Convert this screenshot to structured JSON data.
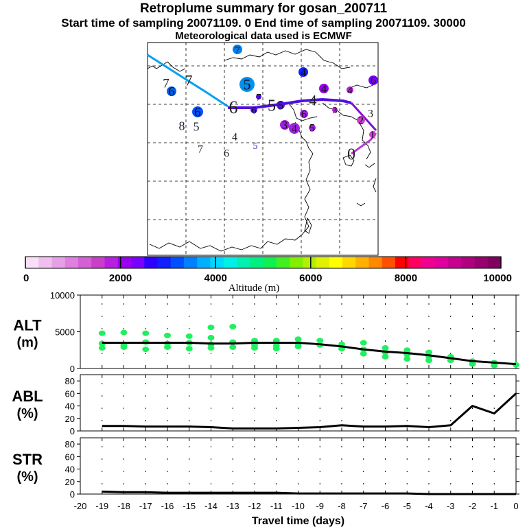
{
  "header": {
    "title": "Retroplume summary for gosan_200711",
    "sampling_line": "Start time of sampling 20071109.    0     End time of sampling 20071109. 30000",
    "met_line": "Meteorological data used is ECMWF"
  },
  "colorbar": {
    "ticks": [
      "0",
      "2000",
      "4000",
      "6000",
      "8000",
      "10000"
    ],
    "label": "Altitude  (m)",
    "colors": [
      "#f7e0f7",
      "#efc0ef",
      "#e79fe7",
      "#df7fdf",
      "#d55fd5",
      "#c93fc9",
      "#b81fe0",
      "#9a00f0",
      "#7a00ff",
      "#3000ff",
      "#1020ff",
      "#0050ff",
      "#0080ff",
      "#00b0ff",
      "#00d8ff",
      "#00f0e8",
      "#00f0b0",
      "#00f080",
      "#10f050",
      "#40f020",
      "#80f000",
      "#b0f000",
      "#e0f000",
      "#ffff00",
      "#ffd800",
      "#ffb000",
      "#ff8800",
      "#ff5000",
      "#ff0000",
      "#ff0060",
      "#f00090",
      "#e000a0",
      "#c80090",
      "#b00080",
      "#980070",
      "#800060"
    ]
  },
  "map": {
    "trajectory_colors": {
      "upper": "#00a0f0",
      "middle": "#5010e0",
      "lower": "#b040d0"
    },
    "labels": [
      {
        "text": "7",
        "color": "#0080f0",
        "dot": true
      },
      {
        "text": "4",
        "color": "#1020ff",
        "dot": true
      },
      {
        "text": "5",
        "color": "#0090f0",
        "dot": true
      },
      {
        "text": "6",
        "color": "#0060f0",
        "dot": true
      },
      {
        "text": "7",
        "color": "#202020",
        "dot": false
      },
      {
        "text": "6",
        "color": "#0050ff",
        "dot": true
      },
      {
        "text": "7",
        "color": "#202020",
        "dot": false
      },
      {
        "text": "6",
        "color": "#1020ff",
        "dot": true
      },
      {
        "text": "8",
        "color": "#202040",
        "dot": false
      },
      {
        "text": "5",
        "color": "#202040",
        "dot": false
      },
      {
        "text": "6",
        "color": "#202020",
        "dot": false
      },
      {
        "text": "7",
        "color": "#5010e0",
        "dot": true
      },
      {
        "text": "6",
        "color": "#5010e0",
        "dot": true
      },
      {
        "text": "5",
        "color": "#202020",
        "dot": false
      },
      {
        "text": "5",
        "color": "#5010e0",
        "dot": true
      },
      {
        "text": "4",
        "color": "#202020",
        "dot": false
      },
      {
        "text": "4",
        "color": "#9a00f0",
        "dot": true
      },
      {
        "text": "4",
        "color": "#b81fe0",
        "dot": true
      },
      {
        "text": "3",
        "color": "#b81fe0",
        "dot": true
      },
      {
        "text": "3",
        "color": "#202020",
        "dot": false
      },
      {
        "text": "2",
        "color": "#c93fc9",
        "dot": true
      },
      {
        "text": "1",
        "color": "#c93fc9",
        "dot": true
      },
      {
        "text": "3",
        "color": "#a020e0",
        "dot": true
      },
      {
        "text": "4",
        "color": "#a020e0",
        "dot": true
      },
      {
        "text": "5",
        "color": "#a020e0",
        "dot": true
      },
      {
        "text": "6",
        "color": "#a020e0",
        "dot": true
      },
      {
        "text": "7",
        "color": "#202020",
        "dot": false
      },
      {
        "text": "6",
        "color": "#202020",
        "dot": false
      },
      {
        "text": "4",
        "color": "#202020",
        "dot": false
      },
      {
        "text": "5",
        "color": "#5010e0",
        "dot": false
      },
      {
        "text": "0",
        "color": "#202020",
        "dot": false
      },
      {
        "text": "0",
        "color": "#202020",
        "dot": false
      },
      {
        "text": "1",
        "color": "#c93fc9",
        "dot": false
      },
      {
        "text": "6",
        "color": "#7a00ff",
        "dot": true
      }
    ]
  },
  "chart_data": [
    {
      "type": "line",
      "panel": "ALT",
      "ylabel_line1": "ALT",
      "ylabel_line2": "(m)",
      "ylim": [
        0,
        10000
      ],
      "yticks": [
        "0",
        "5000",
        "10000"
      ],
      "x": [
        0,
        -1,
        -2,
        -3,
        -4,
        -5,
        -6,
        -7,
        -8,
        -9,
        -10,
        -11,
        -12,
        -13,
        -14,
        -15,
        -16,
        -17,
        -18,
        -19
      ],
      "series": [
        {
          "name": "mean altitude",
          "values": [
            600,
            800,
            1000,
            1400,
            1800,
            2100,
            2300,
            2600,
            3000,
            3300,
            3500,
            3500,
            3500,
            3400,
            3400,
            3500,
            3500,
            3500,
            3500,
            3500
          ]
        }
      ],
      "scatter": {
        "name": "particle altitudes",
        "color": "#20f060",
        "points": [
          [
            -19,
            4800
          ],
          [
            -19,
            3400
          ],
          [
            -19,
            2800
          ],
          [
            -18,
            4900
          ],
          [
            -18,
            3200
          ],
          [
            -18,
            2900
          ],
          [
            -17,
            4800
          ],
          [
            -17,
            3600
          ],
          [
            -17,
            2600
          ],
          [
            -16,
            4500
          ],
          [
            -16,
            3400
          ],
          [
            -16,
            2900
          ],
          [
            -15,
            4400
          ],
          [
            -15,
            3500
          ],
          [
            -15,
            2700
          ],
          [
            -14,
            5600
          ],
          [
            -14,
            4200
          ],
          [
            -14,
            3300
          ],
          [
            -14,
            2800
          ],
          [
            -13,
            5700
          ],
          [
            -13,
            3600
          ],
          [
            -13,
            2900
          ],
          [
            -12,
            3800
          ],
          [
            -12,
            3200
          ],
          [
            -12,
            2800
          ],
          [
            -11,
            3800
          ],
          [
            -11,
            3100
          ],
          [
            -11,
            2700
          ],
          [
            -10,
            4000
          ],
          [
            -10,
            3400
          ],
          [
            -10,
            3000
          ],
          [
            -9,
            3800
          ],
          [
            -9,
            3200
          ],
          [
            -8,
            3300
          ],
          [
            -8,
            2700
          ],
          [
            -7,
            3500
          ],
          [
            -7,
            2600
          ],
          [
            -7,
            2000
          ],
          [
            -6,
            2800
          ],
          [
            -6,
            2200
          ],
          [
            -6,
            1600
          ],
          [
            -5,
            2500
          ],
          [
            -5,
            1900
          ],
          [
            -5,
            1300
          ],
          [
            -4,
            2200
          ],
          [
            -4,
            1600
          ],
          [
            -4,
            1100
          ],
          [
            -3,
            1600
          ],
          [
            -3,
            1100
          ],
          [
            -2,
            1000
          ],
          [
            -2,
            600
          ],
          [
            -1,
            800
          ],
          [
            -1,
            400
          ],
          [
            0,
            500
          ]
        ]
      }
    },
    {
      "type": "line",
      "panel": "ABL",
      "ylabel_line1": "ABL",
      "ylabel_line2": "(%)",
      "ylim": [
        0,
        90
      ],
      "yticks": [
        "0",
        "20",
        "40",
        "60",
        "80"
      ],
      "x": [
        0,
        -1,
        -2,
        -3,
        -4,
        -5,
        -6,
        -7,
        -8,
        -9,
        -10,
        -11,
        -12,
        -13,
        -14,
        -15,
        -16,
        -17,
        -18,
        -19
      ],
      "series": [
        {
          "name": "fraction in boundary layer",
          "values": [
            60,
            28,
            40,
            9,
            6,
            8,
            7,
            7,
            9,
            6,
            5,
            4,
            4,
            4,
            6,
            7,
            7,
            7,
            8,
            8
          ]
        }
      ]
    },
    {
      "type": "line",
      "panel": "STR",
      "ylabel_line1": "STR",
      "ylabel_line2": "(%)",
      "ylim": [
        0,
        90
      ],
      "yticks": [
        "0",
        "20",
        "40",
        "60",
        "80"
      ],
      "x": [
        0,
        -1,
        -2,
        -3,
        -4,
        -5,
        -6,
        -7,
        -8,
        -9,
        -10,
        -11,
        -12,
        -13,
        -14,
        -15,
        -16,
        -17,
        -18,
        -19
      ],
      "series": [
        {
          "name": "fraction in stratosphere",
          "values": [
            0,
            0,
            0,
            0,
            0,
            1,
            1,
            1,
            1,
            1,
            1,
            2,
            2,
            2,
            2,
            2,
            2,
            3,
            3,
            4
          ]
        }
      ],
      "xlabel": "Travel time (days)",
      "xticks": [
        "-20",
        "-19",
        "-18",
        "-17",
        "-16",
        "-15",
        "-14",
        "-13",
        "-12",
        "-11",
        "-10",
        "-9",
        "-8",
        "-7",
        "-6",
        "-5",
        "-4",
        "-3",
        "-2",
        "-1",
        "0"
      ]
    }
  ]
}
